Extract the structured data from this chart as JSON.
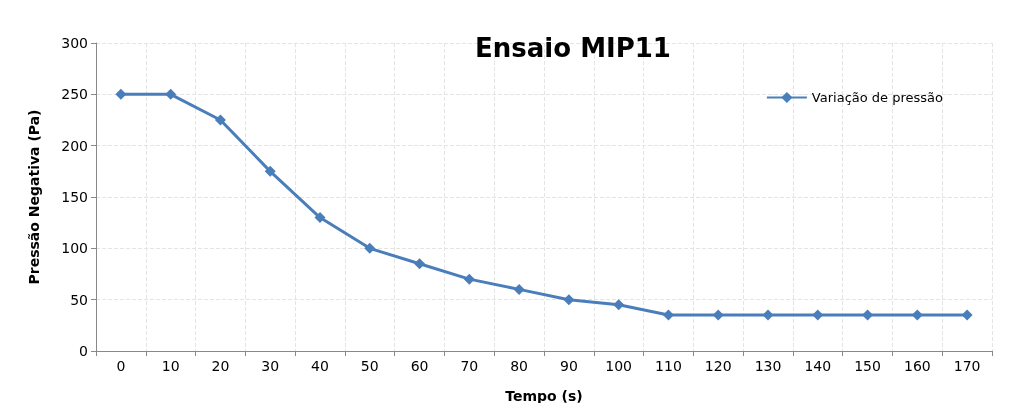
{
  "chart_data": {
    "type": "line",
    "title": "Ensaio MIP11",
    "xlabel": "Tempo (s)",
    "ylabel": "Pressão Negativa (Pa)",
    "categories": [
      "0",
      "10",
      "20",
      "30",
      "40",
      "50",
      "60",
      "70",
      "80",
      "90",
      "100",
      "110",
      "120",
      "130",
      "140",
      "150",
      "160",
      "170"
    ],
    "series": [
      {
        "name": "Variação de pressão",
        "color": "#4a7ebb",
        "values": [
          250,
          250,
          225,
          175,
          130,
          100,
          85,
          70,
          60,
          50,
          45,
          35,
          35,
          35,
          35,
          35,
          35,
          35
        ]
      }
    ],
    "ylim": [
      0,
      300
    ],
    "yticks": [
      0,
      50,
      100,
      150,
      200,
      250,
      300
    ],
    "grid": true,
    "legend": "top right",
    "marker": "diamond",
    "line_style": "solid"
  }
}
